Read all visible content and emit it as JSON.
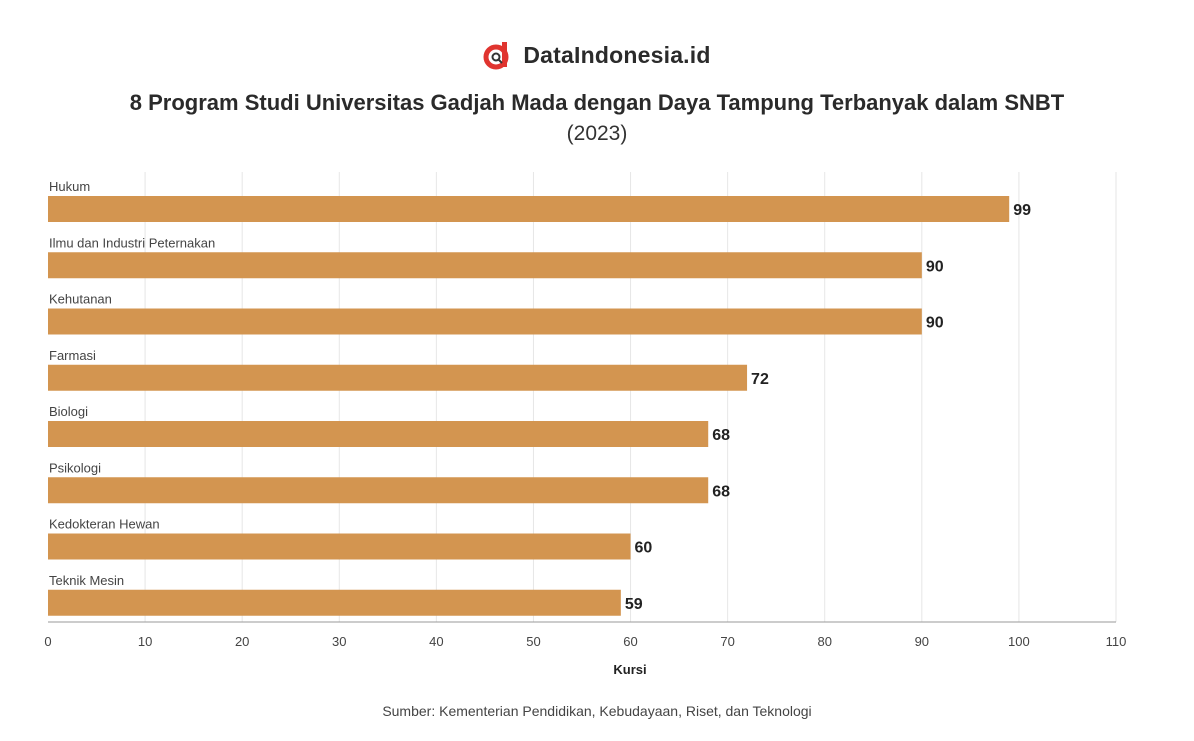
{
  "brand": {
    "name": "DataIndonesia.id",
    "logo_icon": "dataindonesia-logo-icon",
    "logo_color": "#e0342f"
  },
  "source": "Sumber: Kementerian Pendidikan, Kebudayaan, Riset, dan Teknologi",
  "chart_data": {
    "type": "bar",
    "orientation": "horizontal",
    "title": "8 Program Studi Universitas Gadjah Mada dengan Daya Tampung Terbanyak dalam SNBT",
    "subtitle": "(2023)",
    "xlabel": "Kursi",
    "ylabel": "",
    "xlim": [
      0,
      110
    ],
    "xticks": [
      0,
      10,
      20,
      30,
      40,
      50,
      60,
      70,
      80,
      90,
      100,
      110
    ],
    "categories": [
      "Hukum",
      "Ilmu dan Industri Peternakan",
      "Kehutanan",
      "Farmasi",
      "Biologi",
      "Psikologi",
      "Kedokteran Hewan",
      "Teknik Mesin"
    ],
    "values": [
      99,
      90,
      90,
      72,
      68,
      68,
      60,
      59
    ],
    "bar_color": "#d39550",
    "grid": true,
    "legend": "none"
  }
}
